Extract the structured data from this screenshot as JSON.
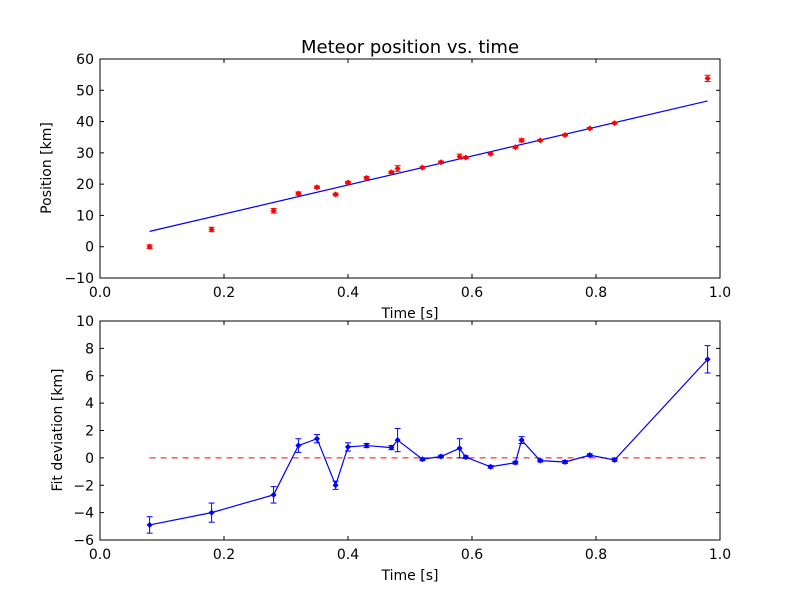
{
  "chart_data": [
    {
      "type": "scatter",
      "title": "Meteor position vs. time",
      "xlabel": "Time [s]",
      "ylabel": "Position [km]",
      "xlim": [
        0.0,
        1.0
      ],
      "ylim": [
        -10,
        60
      ],
      "xticks": [
        "0.0",
        "0.2",
        "0.4",
        "0.6",
        "0.8",
        "1.0"
      ],
      "yticks": [
        "−10",
        "0",
        "10",
        "20",
        "30",
        "40",
        "50",
        "60"
      ],
      "grid": false,
      "colors": {
        "points": "#ff0000",
        "fit": "#0000ff"
      },
      "series": [
        {
          "kind": "points_with_error",
          "points": [
            {
              "x": 0.08,
              "y": 0.0,
              "err": 0.6
            },
            {
              "x": 0.18,
              "y": 5.5,
              "err": 0.7
            },
            {
              "x": 0.28,
              "y": 11.5,
              "err": 0.7
            },
            {
              "x": 0.32,
              "y": 17.0,
              "err": 0.5
            },
            {
              "x": 0.35,
              "y": 19.0,
              "err": 0.4
            },
            {
              "x": 0.38,
              "y": 16.7,
              "err": 0.4
            },
            {
              "x": 0.4,
              "y": 20.5,
              "err": 0.4
            },
            {
              "x": 0.43,
              "y": 22.0,
              "err": 0.4
            },
            {
              "x": 0.47,
              "y": 23.8,
              "err": 0.4
            },
            {
              "x": 0.48,
              "y": 25.0,
              "err": 0.9
            },
            {
              "x": 0.52,
              "y": 25.3,
              "err": 0.3
            },
            {
              "x": 0.55,
              "y": 27.0,
              "err": 0.4
            },
            {
              "x": 0.58,
              "y": 28.8,
              "err": 0.8
            },
            {
              "x": 0.59,
              "y": 28.5,
              "err": 0.3
            },
            {
              "x": 0.63,
              "y": 29.7,
              "err": 0.3
            },
            {
              "x": 0.67,
              "y": 31.8,
              "err": 0.3
            },
            {
              "x": 0.68,
              "y": 34.0,
              "err": 0.5
            },
            {
              "x": 0.71,
              "y": 34.0,
              "err": 0.3
            },
            {
              "x": 0.75,
              "y": 35.7,
              "err": 0.3
            },
            {
              "x": 0.79,
              "y": 37.8,
              "err": 0.3
            },
            {
              "x": 0.83,
              "y": 39.5,
              "err": 0.3
            },
            {
              "x": 0.98,
              "y": 53.8,
              "err": 1.0
            }
          ]
        },
        {
          "kind": "fit_line",
          "x": [
            0.08,
            0.98
          ],
          "y": [
            4.9,
            46.6
          ]
        }
      ]
    },
    {
      "type": "line",
      "title": "",
      "xlabel": "Time [s]",
      "ylabel": "Fit deviation [km]",
      "xlim": [
        0.0,
        1.0
      ],
      "ylim": [
        -6,
        10
      ],
      "xticks": [
        "0.0",
        "0.2",
        "0.4",
        "0.6",
        "0.8",
        "1.0"
      ],
      "yticks": [
        "−6",
        "−4",
        "−2",
        "0",
        "2",
        "4",
        "6",
        "8",
        "10"
      ],
      "grid": false,
      "colors": {
        "line": "#0000ff",
        "reference": "#ff0000"
      },
      "reference_y": 0,
      "series": [
        {
          "kind": "line_with_error",
          "points": [
            {
              "x": 0.08,
              "y": -4.9,
              "err": 0.6
            },
            {
              "x": 0.18,
              "y": -4.0,
              "err": 0.7
            },
            {
              "x": 0.28,
              "y": -2.7,
              "err": 0.6
            },
            {
              "x": 0.32,
              "y": 0.9,
              "err": 0.5
            },
            {
              "x": 0.35,
              "y": 1.4,
              "err": 0.3
            },
            {
              "x": 0.38,
              "y": -2.0,
              "err": 0.3
            },
            {
              "x": 0.4,
              "y": 0.8,
              "err": 0.3
            },
            {
              "x": 0.43,
              "y": 0.9,
              "err": 0.15
            },
            {
              "x": 0.47,
              "y": 0.75,
              "err": 0.15
            },
            {
              "x": 0.48,
              "y": 1.3,
              "err": 0.85
            },
            {
              "x": 0.52,
              "y": -0.1,
              "err": 0.1
            },
            {
              "x": 0.55,
              "y": 0.1,
              "err": 0.1
            },
            {
              "x": 0.58,
              "y": 0.7,
              "err": 0.7
            },
            {
              "x": 0.59,
              "y": 0.05,
              "err": 0.1
            },
            {
              "x": 0.63,
              "y": -0.65,
              "err": 0.1
            },
            {
              "x": 0.67,
              "y": -0.35,
              "err": 0.1
            },
            {
              "x": 0.68,
              "y": 1.3,
              "err": 0.25
            },
            {
              "x": 0.71,
              "y": -0.2,
              "err": 0.1
            },
            {
              "x": 0.75,
              "y": -0.3,
              "err": 0.1
            },
            {
              "x": 0.79,
              "y": 0.2,
              "err": 0.1
            },
            {
              "x": 0.83,
              "y": -0.15,
              "err": 0.1
            },
            {
              "x": 0.98,
              "y": 7.2,
              "err": 1.0
            }
          ]
        }
      ]
    }
  ]
}
